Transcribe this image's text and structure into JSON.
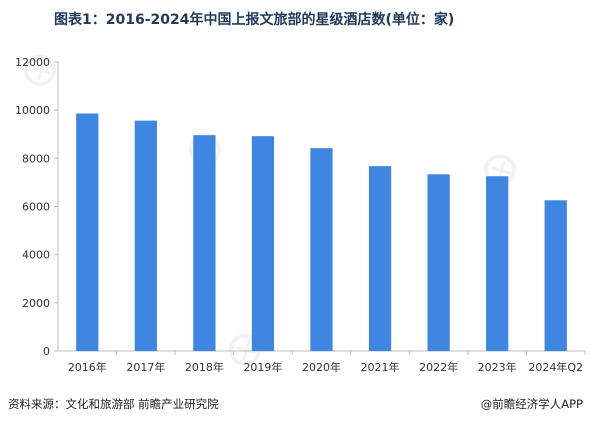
{
  "chart_data": {
    "type": "bar",
    "title": "图表1：2016-2024年中国上报文旅部的星级酒店数(单位：家)",
    "categories": [
      "2016年",
      "2017年",
      "2018年",
      "2019年",
      "2020年",
      "2021年",
      "2022年",
      "2023年",
      "2024年Q2"
    ],
    "values": [
      9861,
      9566,
      8962,
      8920,
      8423,
      7676,
      7337,
      7257,
      6259
    ],
    "ylim": [
      0,
      12000
    ],
    "yticks": [
      0,
      2000,
      4000,
      6000,
      8000,
      10000,
      12000
    ],
    "grid": false,
    "legend": "none",
    "bar_color": "#3f86e0",
    "axis_color": "#bfbfbf",
    "text_color": "#333333"
  },
  "footer": {
    "source": "资料来源：文化和旅游部 前瞻产业研究院",
    "credit": "@前瞻经济学人APP"
  }
}
